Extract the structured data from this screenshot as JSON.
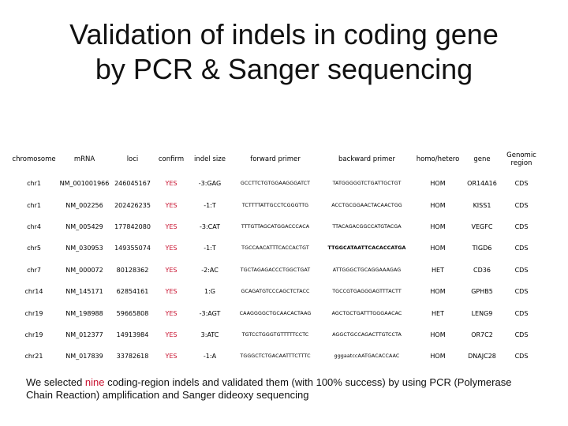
{
  "title": {
    "line1": "Validation of indels in coding gene",
    "line2": "by PCR & Sanger sequencing"
  },
  "table": {
    "headers": [
      "chromosome",
      "mRNA",
      "loci",
      "confirm",
      "indel size",
      "forward primer",
      "backward primer",
      "homo/hetero",
      "gene",
      "Genomic region"
    ],
    "rows": [
      [
        "chr1",
        "NM_001001966",
        "246045167",
        "YES",
        "-3:GAG",
        "GCCTTCTGTGGAAGGGATCT",
        "TATGGGGGTCTGATTGCTGT",
        "HOM",
        "OR14A16",
        "CDS"
      ],
      [
        "chr1",
        "NM_002256",
        "202426235",
        "YES",
        "-1:T",
        "TCTTTTATTGCCTCGGGTTG",
        "ACCTGCGGAACTACAACTGG",
        "HOM",
        "KISS1",
        "CDS"
      ],
      [
        "chr4",
        "NM_005429",
        "177842080",
        "YES",
        "-3:CAT",
        "TTTGTTAGCATGGACCCACA",
        "TTACAGACGGCCATGTACGA",
        "HOM",
        "VEGFC",
        "CDS"
      ],
      [
        "chr5",
        "NM_030953",
        "149355074",
        "YES",
        "-1:T",
        "TGCCAACATTTCACCACTGT",
        "TTGGCATAATTCACACCATGA",
        "HOM",
        "TIGD6",
        "CDS"
      ],
      [
        "chr7",
        "NM_000072",
        "80128362",
        "YES",
        "-2:AC",
        "TGCTAGAGACCCTGGCTGAT",
        "ATTGGGCTGCAGGAAAGAG",
        "HET",
        "CD36",
        "CDS"
      ],
      [
        "chr14",
        "NM_145171",
        "62854161",
        "YES",
        "1:G",
        "GCAGATGTCCCAGCTCTACC",
        "TGCCGTGAGGGAGTTTACTT",
        "HOM",
        "GPHB5",
        "CDS"
      ],
      [
        "chr19",
        "NM_198988",
        "59665808",
        "YES",
        "-3:AGT",
        "CAAGGGGCTGCAACACTAAG",
        "AGCTGCTGATTTGGGAACAC",
        "HET",
        "LENG9",
        "CDS"
      ],
      [
        "chr19",
        "NM_012377",
        "14913984",
        "YES",
        "3:ATC",
        "TGTCCTGGGTGTTTTTCCTC",
        "AGGCTGCCAGACTTGTCCTA",
        "HOM",
        "OR7C2",
        "CDS"
      ],
      [
        "chr21",
        "NM_017839",
        "33782618",
        "YES",
        "-1:A",
        "TGGGCTCTGACAATTTCTTTC",
        "gggaatccAATGACACCAAC",
        "HOM",
        "DNAJC28",
        "CDS"
      ]
    ]
  },
  "caption": {
    "part1": "We selected ",
    "highlight": "nine",
    "part2": " coding-region indels and validated them (with 100% success) by using PCR (Polymerase Chain Reaction) amplification and Sanger dideoxy sequencing"
  },
  "colors": {
    "accent_red": "#c8102e"
  }
}
